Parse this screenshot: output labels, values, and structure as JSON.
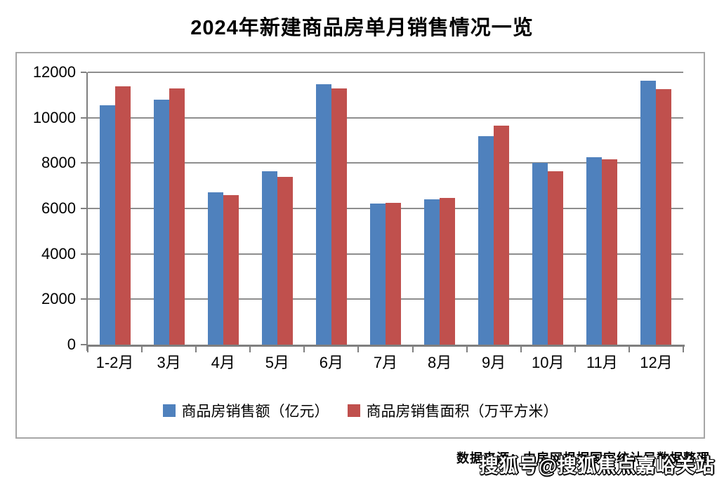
{
  "title": "2024年新建商品房单月销售情况一览",
  "chart_data": {
    "type": "bar",
    "title": "2024年新建商品房单月销售情况一览",
    "categories": [
      "1-2月",
      "3月",
      "4月",
      "5月",
      "6月",
      "7月",
      "8月",
      "9月",
      "10月",
      "11月",
      "12月"
    ],
    "series": [
      {
        "name": "商品房销售额（亿元）",
        "color": "#4F81BD",
        "values": [
          10560,
          10780,
          6700,
          7630,
          11470,
          6210,
          6400,
          9180,
          8000,
          8270,
          11640
        ]
      },
      {
        "name": "商品房销售面积（万平方米）",
        "color": "#C0504D",
        "values": [
          11370,
          11290,
          6580,
          7400,
          11290,
          6250,
          6460,
          9660,
          7640,
          8170,
          11250
        ]
      }
    ],
    "xlabel": "",
    "ylabel": "",
    "ylim": [
      0,
      12000
    ],
    "ytick_step": 2000,
    "ytick_labels": [
      "0",
      "2000",
      "4000",
      "6000",
      "8000",
      "10000",
      "12000"
    ],
    "grid": true,
    "legend_position": "bottom"
  },
  "footer": {
    "source": "数据来源：中房网根据国家统计局数据整理"
  },
  "watermark": "搜狐号@搜狐焦点嘉峪关站",
  "colors": {
    "blue_series": "#4F81BD",
    "red_series": "#C0504D",
    "gridline": "#8E8E8E",
    "axis": "#7F7F7F",
    "frame_border": "#A6A6A6"
  }
}
